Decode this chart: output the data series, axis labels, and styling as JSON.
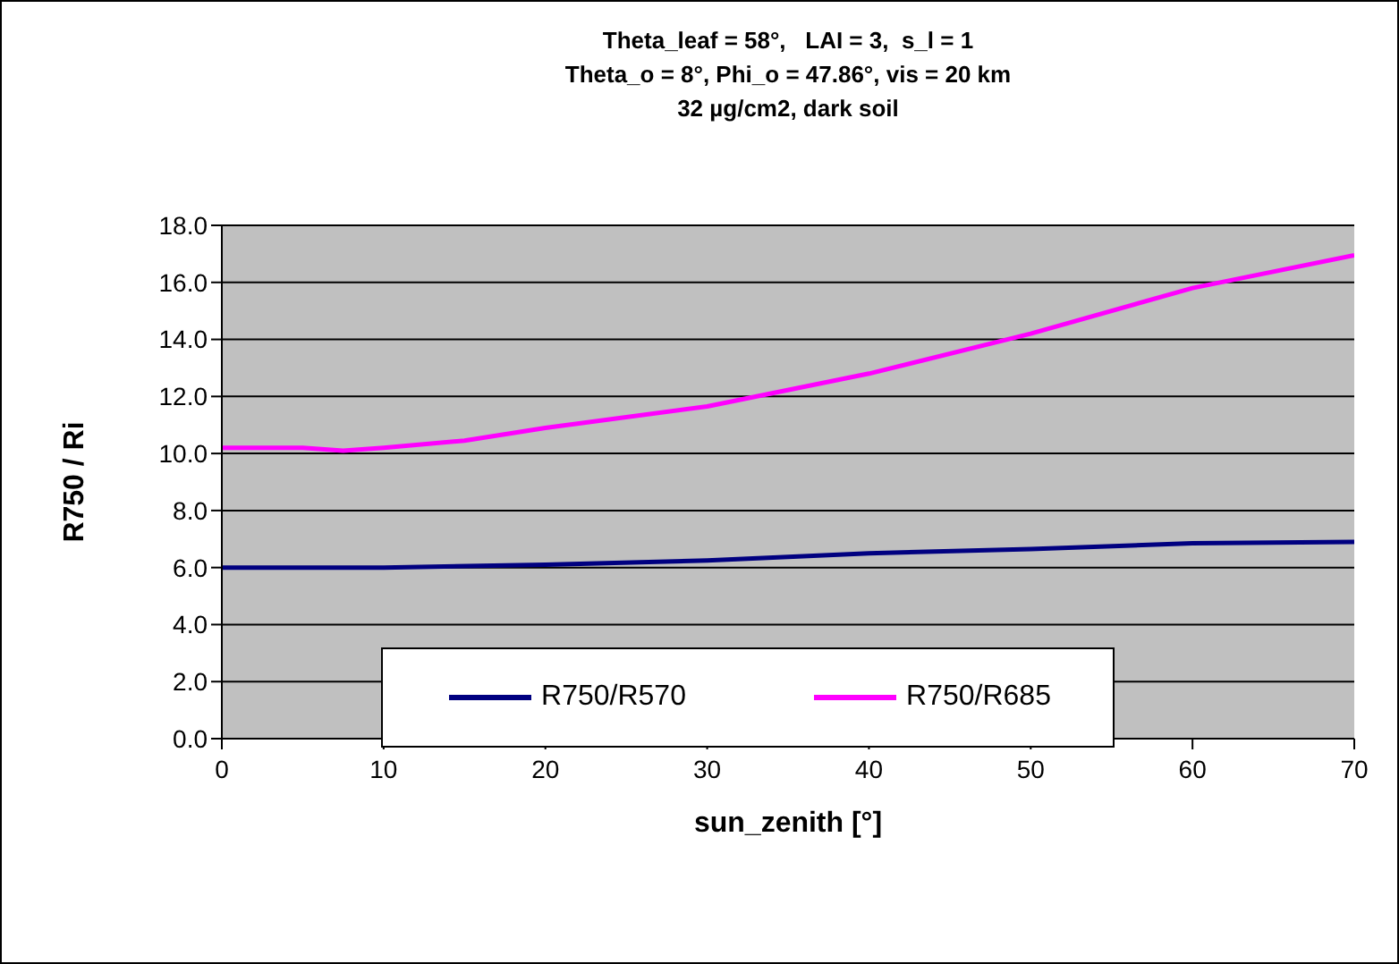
{
  "chart_data": {
    "type": "line",
    "title": "Theta_leaf = 58°,   LAI = 3,  s_l = 1",
    "subtitle": "Theta_o = 8°, Phi_o = 47.86°, vis = 20 km\n32 µg/cm2, dark soil",
    "xlabel": "sun_zenith [°]",
    "ylabel": "R750 / Ri",
    "series": [
      {
        "name": "R750/R570",
        "color": "#000080",
        "x": [
          0,
          10,
          20,
          30,
          40,
          50,
          60,
          70
        ],
        "values": [
          6.0,
          6.0,
          6.1,
          6.25,
          6.5,
          6.65,
          6.85,
          6.9
        ]
      },
      {
        "name": "R750/R685",
        "color": "#ff00ff",
        "x": [
          0,
          5,
          7.5,
          10,
          15,
          20,
          30,
          40,
          50,
          60,
          70
        ],
        "values": [
          10.2,
          10.2,
          10.1,
          10.2,
          10.45,
          10.9,
          11.65,
          12.8,
          14.2,
          15.8,
          16.95
        ]
      }
    ],
    "xlim": [
      0,
      70
    ],
    "xticks": [
      0,
      10,
      20,
      30,
      40,
      50,
      60,
      70
    ],
    "ylim": [
      0,
      18
    ],
    "yticks": [
      {
        "value": 0,
        "label": "0.0"
      },
      {
        "value": 2,
        "label": "2.0"
      },
      {
        "value": 4,
        "label": "4.0"
      },
      {
        "value": 6,
        "label": "6.0"
      },
      {
        "value": 8,
        "label": "8.0"
      },
      {
        "value": 10,
        "label": "10.0"
      },
      {
        "value": 12,
        "label": "12.0"
      },
      {
        "value": 14,
        "label": "14.0"
      },
      {
        "value": 16,
        "label": "16.0"
      },
      {
        "value": 18,
        "label": "18.0"
      }
    ],
    "grid": "y",
    "legend": "bottom",
    "marker": "none",
    "line_style": "solid"
  }
}
